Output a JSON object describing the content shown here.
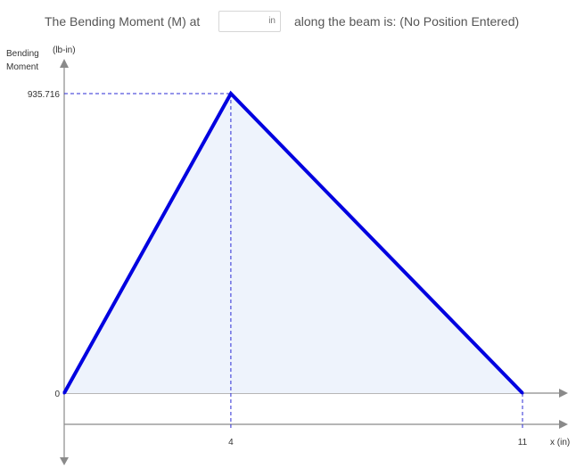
{
  "prompt": {
    "prefix": "The Bending Moment (M) at",
    "input_value": "",
    "input_unit": "in",
    "suffix": "along the beam is: (No Position Entered)"
  },
  "chart_data": {
    "type": "area",
    "ylabel_line1": "Bending",
    "ylabel_line2": "Moment",
    "ylabel_unit": "(lb-in)",
    "xlabel": "x  (in)",
    "points": [
      {
        "x": 0,
        "y": 0
      },
      {
        "x": 4,
        "y": 935.716
      },
      {
        "x": 11,
        "y": 0
      }
    ],
    "y_ticks": [
      "0",
      "935.716"
    ],
    "x_ticks": [
      "4",
      "11"
    ],
    "peak": {
      "x": 4,
      "y": 935.716
    },
    "xlim": [
      0,
      11
    ],
    "ylim": [
      0,
      935.716
    ],
    "colors": {
      "line": "#0000e0",
      "fill": "#eef3fc",
      "dashed": "#2b2bd6",
      "axis": "#8a8a8a"
    }
  }
}
